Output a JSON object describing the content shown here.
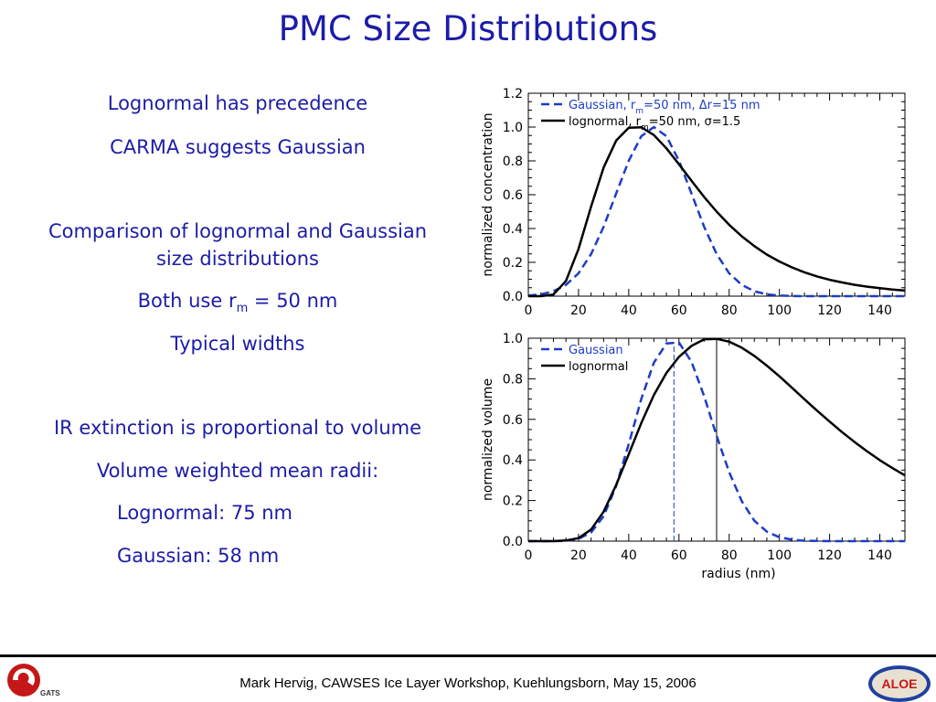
{
  "slide": {
    "title": "PMC Size Distributions",
    "footer": "Mark Hervig, CAWSES Ice Layer Workshop, Kuehlungsborn, May 15, 2006",
    "logo_left_text": "GATS",
    "logo_right_text": "ALOE"
  },
  "bullets": {
    "b1": "Lognormal has precedence",
    "b2": "CARMA suggests Gaussian",
    "b3_line1": "Comparison of lognormal and Gaussian",
    "b3_line2": "size distributions",
    "b4_prefix": "Both use r",
    "b4_sub": "m",
    "b4_suffix": " = 50 nm",
    "b5": "Typical widths",
    "b6": "IR extinction is proportional to volume",
    "b7": "Volume weighted mean radii:",
    "b8": "Lognormal:  75 nm",
    "b9": "Gaussian:  58 nm"
  },
  "colors": {
    "text": "#1c1ca8",
    "gaussian": "#1c3cc8",
    "lognormal": "#000000"
  },
  "chart_data": [
    {
      "type": "line",
      "title": "",
      "xlabel": "",
      "ylabel": "normalized concentration",
      "xlim": [
        0,
        150
      ],
      "ylim": [
        0,
        1.2
      ],
      "xticks": [
        0,
        20,
        40,
        60,
        80,
        100,
        120,
        140
      ],
      "yticks": [
        0.0,
        0.2,
        0.4,
        0.6,
        0.8,
        1.0,
        1.2
      ],
      "x": [
        0,
        5,
        10,
        15,
        20,
        25,
        30,
        35,
        40,
        45,
        50,
        55,
        60,
        65,
        70,
        75,
        80,
        85,
        90,
        95,
        100,
        105,
        110,
        115,
        120,
        125,
        130,
        135,
        140,
        145,
        150
      ],
      "series": [
        {
          "name": "Gaussian",
          "legend_label": "Gaussian, r_m=50 nm, Δr=15 nm",
          "style": "dashed",
          "values": [
            0.004,
            0.011,
            0.029,
            0.067,
            0.135,
            0.249,
            0.411,
            0.607,
            0.801,
            0.946,
            1.0,
            0.946,
            0.801,
            0.607,
            0.411,
            0.249,
            0.135,
            0.067,
            0.029,
            0.011,
            0.004,
            0.001,
            0.0,
            0.0,
            0.0,
            0.0,
            0.0,
            0.0,
            0.0,
            0.0,
            0.0
          ]
        },
        {
          "name": "lognormal",
          "legend_label": "lognormal, r_m=50 nm, σ=1.5",
          "style": "solid",
          "values": [
            0.0,
            0.0,
            0.01,
            0.09,
            0.279,
            0.53,
            0.761,
            0.92,
            0.996,
            0.999,
            0.953,
            0.874,
            0.78,
            0.682,
            0.587,
            0.5,
            0.422,
            0.354,
            0.296,
            0.246,
            0.205,
            0.17,
            0.141,
            0.117,
            0.097,
            0.081,
            0.067,
            0.056,
            0.047,
            0.039,
            0.033
          ]
        }
      ]
    },
    {
      "type": "line",
      "title": "",
      "xlabel": "radius (nm)",
      "ylabel": "normalized volume",
      "xlim": [
        0,
        150
      ],
      "ylim": [
        0,
        1.0
      ],
      "xticks": [
        0,
        20,
        40,
        60,
        80,
        100,
        120,
        140
      ],
      "yticks": [
        0.0,
        0.2,
        0.4,
        0.6,
        0.8,
        1.0
      ],
      "x": [
        0,
        5,
        10,
        15,
        20,
        25,
        30,
        35,
        40,
        45,
        50,
        55,
        60,
        65,
        70,
        75,
        80,
        85,
        90,
        95,
        100,
        105,
        110,
        115,
        120,
        125,
        130,
        135,
        140,
        145,
        150
      ],
      "series": [
        {
          "name": "Gaussian",
          "legend_label": "Gaussian",
          "style": "dashed",
          "values": [
            0.0,
            0.0,
            0.0,
            0.002,
            0.011,
            0.043,
            0.123,
            0.272,
            0.479,
            0.701,
            0.879,
            0.974,
            0.979,
            0.884,
            0.715,
            0.519,
            0.34,
            0.197,
            0.101,
            0.047,
            0.019,
            0.007,
            0.002,
            0.001,
            0.0,
            0.0,
            0.0,
            0.0,
            0.0,
            0.0,
            0.0
          ]
        },
        {
          "name": "lognormal",
          "legend_label": "lognormal",
          "style": "solid",
          "values": [
            0.0,
            0.0,
            0.0,
            0.003,
            0.015,
            0.057,
            0.145,
            0.277,
            0.429,
            0.582,
            0.72,
            0.829,
            0.908,
            0.962,
            0.994,
            0.997,
            0.983,
            0.953,
            0.913,
            0.865,
            0.812,
            0.756,
            0.699,
            0.643,
            0.589,
            0.537,
            0.488,
            0.442,
            0.399,
            0.36,
            0.324
          ]
        }
      ],
      "markers": [
        {
          "x": 58,
          "style": "dashed",
          "series": "Gaussian"
        },
        {
          "x": 75,
          "style": "solid",
          "series": "lognormal"
        }
      ]
    }
  ]
}
